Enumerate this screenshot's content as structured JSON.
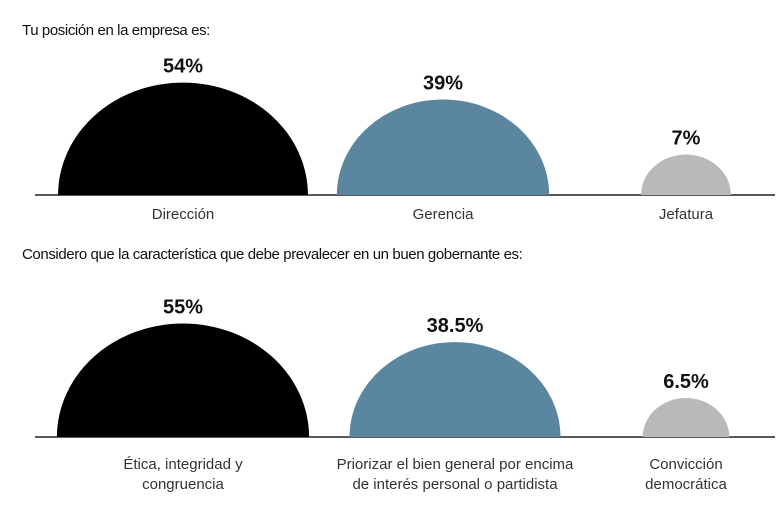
{
  "chart_data": [
    {
      "type": "semicircle",
      "title": "Tu posición en la empresa es:",
      "categories": [
        "Dirección",
        "Gerencia",
        "Jefatura"
      ],
      "values": [
        54,
        39,
        7
      ],
      "value_labels": [
        "54%",
        "39%",
        "7%"
      ],
      "colors": [
        "#000000",
        "#5a86a0",
        "#b9b9b9"
      ]
    },
    {
      "type": "semicircle",
      "title": "Considero que la característica que debe prevalecer en un buen gobernante es:",
      "categories": [
        "Ética, integridad y congruencia",
        "Priorizar el bien general por encima de interés personal o partidista",
        "Convicción democrática"
      ],
      "values": [
        55,
        38.5,
        6.5
      ],
      "value_labels": [
        "55%",
        "38.5%",
        "6.5%"
      ],
      "colors": [
        "#000000",
        "#5a86a0",
        "#b9b9b9"
      ]
    }
  ]
}
